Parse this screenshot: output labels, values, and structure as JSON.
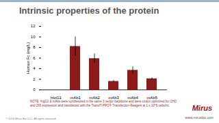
{
  "chart_data": {
    "type": "bar",
    "title": "Intrinsic properties of the protein",
    "y_label": "Human Fc (mg/L)",
    "categories": [
      "hIgG1",
      "mAb1",
      "mAb2",
      "mAb3",
      "mAb4",
      "mAb5"
    ],
    "values": [
      0,
      8.2,
      5.9,
      1.6,
      3.7,
      2.1
    ],
    "errors": [
      0,
      1.8,
      0.9,
      0.2,
      0.7,
      0.2
    ],
    "color": "#8b1a1a",
    "ylim": [
      0,
      12
    ],
    "yticks": [
      0,
      2,
      4,
      6,
      8,
      10,
      12
    ],
    "grid": false
  },
  "footnote": "NOTE: hIgG1 & mAbs were synthesized in the same 3 vector backbone and were codon optimized for CHO and 293 expression and transfected with the TransIT-PRO® Transfection Reagent at 1 x 10^6 cells/ml.",
  "copyright": "© 2014 Mirus Bio LLC. All rights reserved.",
  "logo": "Mirus",
  "url": "www.mirusbio.com"
}
